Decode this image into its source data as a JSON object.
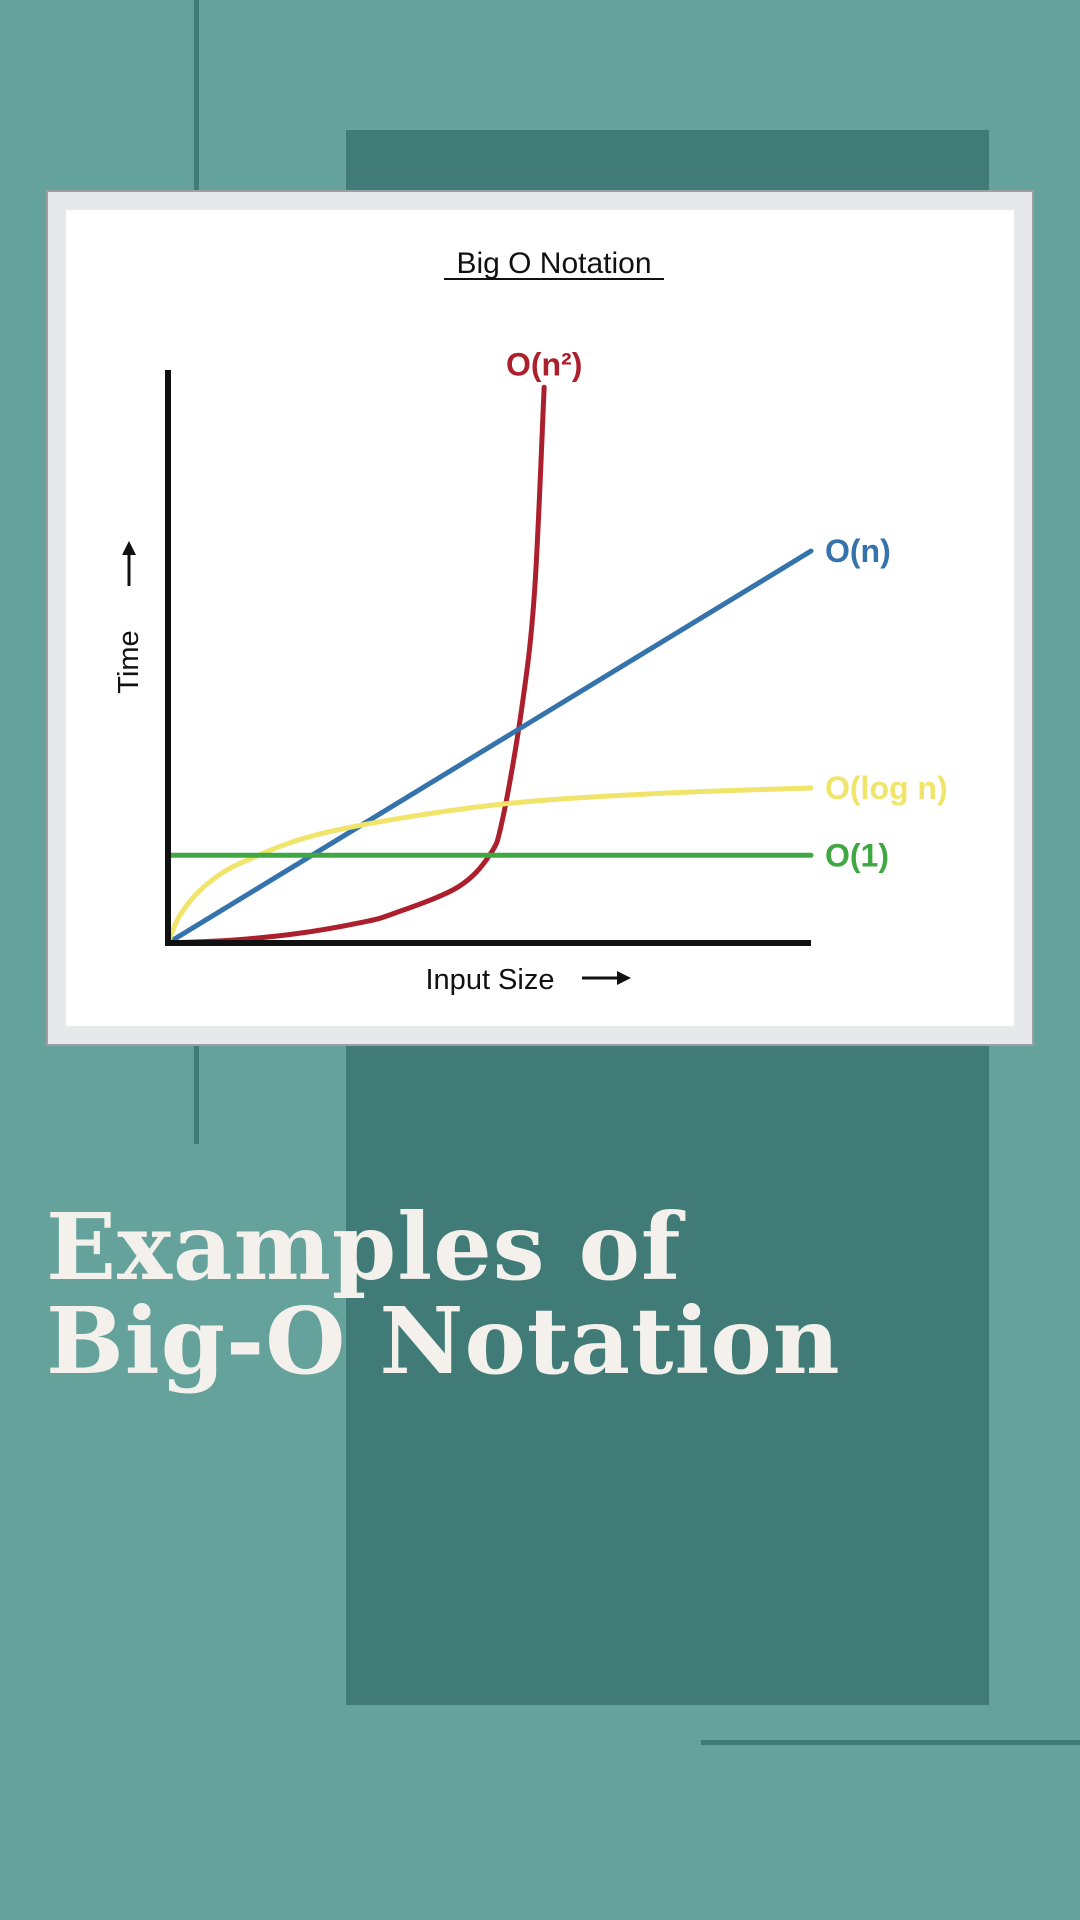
{
  "page": {
    "title_lines": [
      "Examples of",
      "Big-O Notation"
    ]
  },
  "chart_data": {
    "type": "line",
    "title": "Big O Notation",
    "xlabel": "Input Size",
    "ylabel": "Time",
    "grid": false,
    "legend": "inline labels at line ends",
    "series": [
      {
        "name": "O(n²)",
        "color": "#ac1f2c",
        "points": [
          [
            0,
            0
          ],
          [
            10,
            0.5
          ],
          [
            20,
            1.6
          ],
          [
            30,
            3.5
          ],
          [
            35,
            5
          ],
          [
            45,
            9.5
          ],
          [
            50,
            15
          ],
          [
            52,
            21
          ],
          [
            55,
            40
          ],
          [
            57,
            60
          ],
          [
            58.5,
            95
          ]
        ]
      },
      {
        "name": "O(n)",
        "color": "#3473ab",
        "points": [
          [
            0,
            0
          ],
          [
            100,
            67
          ]
        ]
      },
      {
        "name": "O(log n)",
        "color": "#f1e46a",
        "points": [
          [
            0,
            0
          ],
          [
            2,
            5
          ],
          [
            6,
            10
          ],
          [
            12,
            14
          ],
          [
            25,
            19
          ],
          [
            50,
            23.5
          ],
          [
            75,
            25.5
          ],
          [
            100,
            26.5
          ]
        ]
      },
      {
        "name": "O(1)",
        "color": "#3fa842",
        "points": [
          [
            0,
            15
          ],
          [
            100,
            15
          ]
        ]
      }
    ]
  }
}
